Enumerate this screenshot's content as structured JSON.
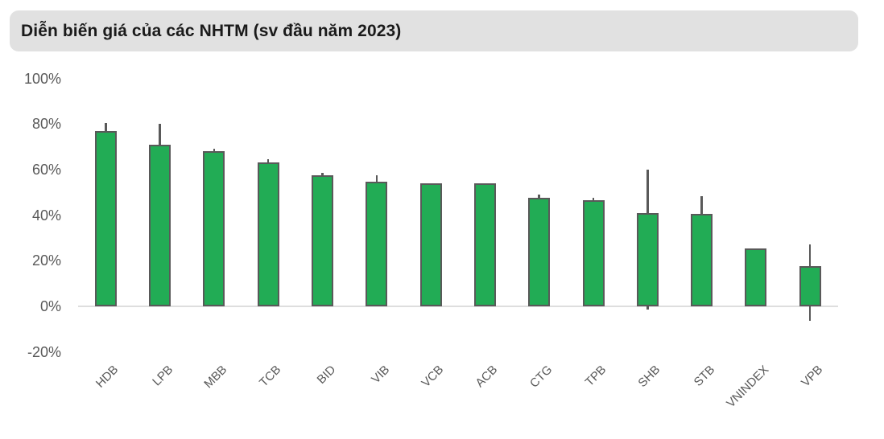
{
  "title": "Diễn biến giá của các NHTM (sv đầu năm 2023)",
  "colors": {
    "bar_fill": "#22ac55",
    "bar_border": "#595959",
    "axis_text": "#595959",
    "title_text": "#1a1a1a",
    "banner_bg": "#e1e1e1",
    "baseline": "#dedede"
  },
  "chart_data": {
    "type": "bar",
    "subtype": "bars-from-zero-with-high-low-whiskers",
    "title": "Diễn biến giá của các NHTM (sv đầu năm 2023)",
    "unit": "%",
    "categories": [
      "HDB",
      "LPB",
      "MBB",
      "TCB",
      "BID",
      "VIB",
      "VCB",
      "ACB",
      "CTG",
      "TPB",
      "SHB",
      "STB",
      "VNINDEX",
      "VPB"
    ],
    "values": [
      77,
      71,
      68,
      63,
      57.5,
      54.5,
      54,
      54,
      47.5,
      46.5,
      41,
      40.5,
      25.5,
      17.5
    ],
    "whisker_high": [
      80.5,
      80,
      69,
      64.5,
      58.5,
      57.5,
      54,
      54,
      49,
      47.5,
      60,
      48.5,
      25.5,
      27
    ],
    "whisker_low": [
      0,
      0,
      0,
      0,
      0,
      0,
      0,
      0,
      0,
      0,
      -1.5,
      0,
      0,
      -6.5
    ],
    "xlabel": "",
    "ylabel": "",
    "ytick_labels": [
      "100%",
      "80%",
      "60%",
      "40%",
      "20%",
      "0%",
      "-20%"
    ],
    "ytick_values": [
      100,
      80,
      60,
      40,
      20,
      0,
      -20
    ],
    "ylim": [
      -20,
      100
    ],
    "grid": false,
    "legend": false
  }
}
